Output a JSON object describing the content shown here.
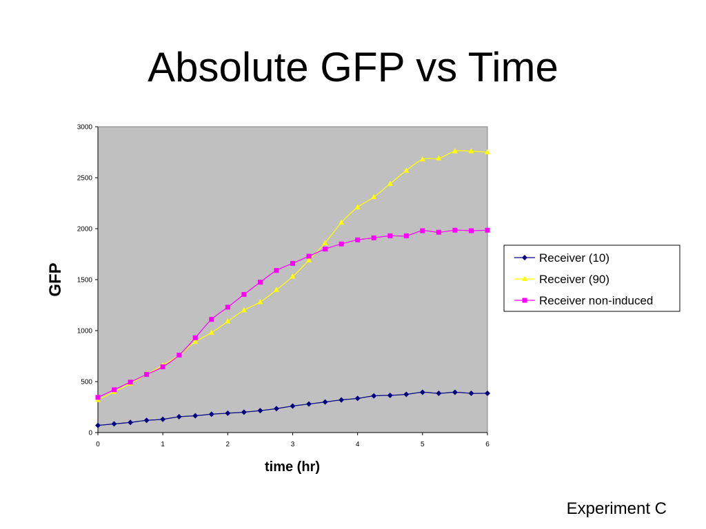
{
  "slide": {
    "title": "Absolute GFP vs Time",
    "footer": "Experiment C"
  },
  "chart_data": {
    "type": "line",
    "xlabel": "time (hr)",
    "ylabel": "GFP",
    "xlim": [
      0,
      6
    ],
    "ylim": [
      0,
      3000
    ],
    "xticks": [
      0,
      1,
      2,
      3,
      4,
      5,
      6
    ],
    "yticks": [
      0,
      500,
      1000,
      1500,
      2000,
      2500,
      3000
    ],
    "grid": false,
    "plot_background": "#c0c0c0",
    "legend_position": "right",
    "x": [
      0,
      0.25,
      0.5,
      0.75,
      1,
      1.25,
      1.5,
      1.75,
      2,
      2.25,
      2.5,
      2.75,
      3,
      3.25,
      3.5,
      3.75,
      4,
      4.25,
      4.5,
      4.75,
      5,
      5.25,
      5.5,
      5.75,
      6
    ],
    "series": [
      {
        "name": "Receiver (10)",
        "color": "#000080",
        "marker": "diamond",
        "values": [
          70,
          85,
          100,
          120,
          130,
          155,
          165,
          180,
          190,
          200,
          215,
          235,
          260,
          280,
          300,
          320,
          335,
          360,
          365,
          375,
          395,
          385,
          395,
          385,
          385
        ]
      },
      {
        "name": "Receiver (90)",
        "color": "#ffff00",
        "marker": "triangle",
        "values": [
          320,
          400,
          480,
          570,
          660,
          760,
          890,
          980,
          1090,
          1200,
          1280,
          1400,
          1530,
          1690,
          1860,
          2060,
          2210,
          2310,
          2440,
          2570,
          2680,
          2690,
          2760,
          2760,
          2750
        ]
      },
      {
        "name": "Receiver non-induced",
        "color": "#ff00ff",
        "marker": "square",
        "values": [
          345,
          420,
          495,
          570,
          645,
          760,
          930,
          1110,
          1230,
          1355,
          1475,
          1590,
          1660,
          1730,
          1800,
          1850,
          1890,
          1910,
          1930,
          1930,
          1980,
          1965,
          1985,
          1980,
          1985
        ]
      }
    ]
  }
}
